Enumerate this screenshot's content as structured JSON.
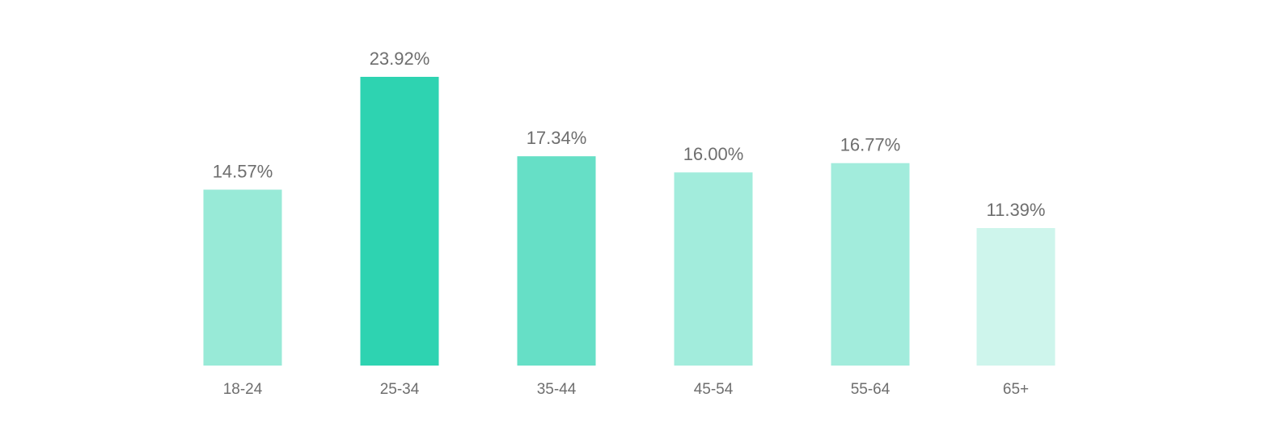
{
  "chart_data": {
    "type": "bar",
    "title": "",
    "xlabel": "",
    "ylabel": "",
    "categories": [
      "18-24",
      "25-34",
      "35-44",
      "45-54",
      "55-64",
      "65+"
    ],
    "values": [
      14.57,
      23.92,
      17.34,
      16.0,
      16.77,
      11.39
    ],
    "value_labels": [
      "14.57%",
      "23.92%",
      "17.34%",
      "16.00%",
      "16.77%",
      "11.39%"
    ],
    "bar_colors": [
      "#98ead7",
      "#2ed3b1",
      "#66dfc6",
      "#a2ecdc",
      "#a2ecdc",
      "#cef5ec"
    ],
    "ylim": [
      0,
      23.92
    ],
    "grid": false,
    "legend": "none"
  }
}
